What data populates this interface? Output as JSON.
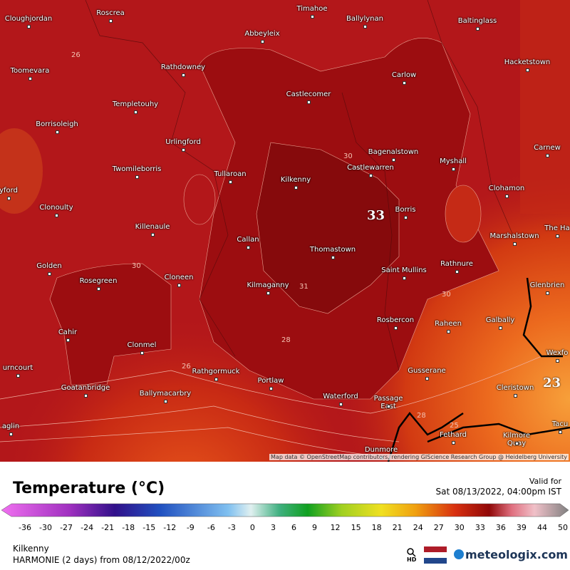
{
  "map": {
    "places": [
      "Roscrea",
      "Cloughjordan",
      "Timahoe",
      "Ballylynan",
      "Baltinglass",
      "Abbeyleix",
      "Toomevara",
      "Rathdowney",
      "Hacketstown",
      "Carlow",
      "Castlecomer",
      "Templetouhy",
      "Borrisoleigh",
      "Urlingford",
      "Bagenalstown",
      "Carnew",
      "Myshall",
      "Castlewarren",
      "Twomileborris",
      "Tullaroan",
      "Kilkenny",
      "Clohamon",
      "yford",
      "Clonoulty",
      "Borris",
      "Killenaule",
      "Marshalstown",
      "The Ha",
      "Callan",
      "Thomastown",
      "Rathnure",
      "Golden",
      "Saint Mullins",
      "Cloneen",
      "Rosegreen",
      "Kilmaganny",
      "Glenbrien",
      "Rosbercon",
      "Galbally",
      "Raheen",
      "Cahir",
      "Clonmel",
      "Wexfo",
      "urncourt",
      "Rathgormuck",
      "Gusserane",
      "Portlaw",
      "Goatanbridge",
      "Cleristown",
      "Ballymacarbry",
      "Waterford",
      "Passage East",
      "aglin",
      "Tacu",
      "Fethard",
      "Kilmore Quay",
      "Dunmore"
    ],
    "big_labels": [
      "33",
      "23"
    ],
    "contour_labels": [
      "26",
      "30",
      "31",
      "30",
      "28",
      "26",
      "30",
      "28",
      "25"
    ],
    "attribution": "Map data © OpenStreetMap contributors, rendering GIScience Research Group @ Heidelberg University"
  },
  "legend": {
    "title": "Temperature (°C)",
    "valid_label": "Valid for",
    "valid_time": "Sat 08/13/2022, 04:00pm IST",
    "ticks": [
      -36,
      -30,
      -27,
      -24,
      -21,
      -18,
      -15,
      -12,
      -9,
      -6,
      -3,
      0,
      3,
      6,
      9,
      12,
      15,
      18,
      21,
      24,
      27,
      30,
      33,
      36,
      39,
      44,
      50
    ]
  },
  "footer": {
    "location": "Kilkenny",
    "model": "HARMONIE (2 days) from 08/12/2022/00z",
    "hd": "HD",
    "brand": "meteologix.com"
  }
}
